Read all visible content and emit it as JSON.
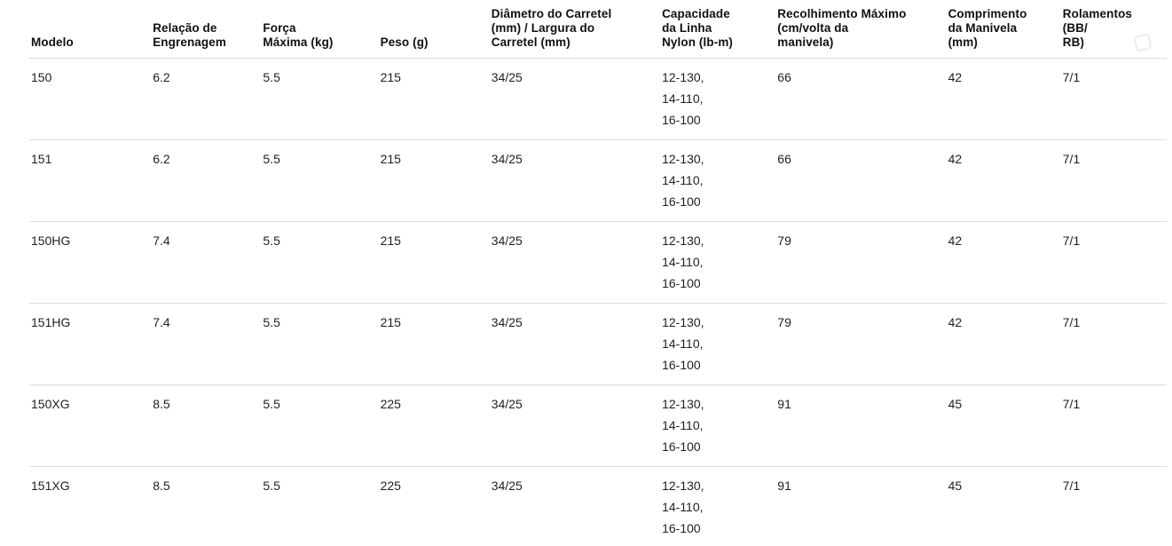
{
  "table": {
    "columns": [
      {
        "id": "modelo",
        "label": "Modelo"
      },
      {
        "id": "relacao",
        "label": "Relação de\nEngrenagem"
      },
      {
        "id": "forca",
        "label": "Força\nMáxima (kg)"
      },
      {
        "id": "peso",
        "label": "Peso (g)"
      },
      {
        "id": "diametro",
        "label": "Diâmetro do Carretel\n(mm) / Largura do\nCarretel (mm)"
      },
      {
        "id": "capacidade",
        "label": "Capacidade\nda Linha\nNylon (lb-m)"
      },
      {
        "id": "recolhimento",
        "label": "Recolhimento Máximo\n(cm/volta da\nmanivela)"
      },
      {
        "id": "comprimento",
        "label": "Comprimento\nda Manivela\n(mm)"
      },
      {
        "id": "rolamentos",
        "label": "Rolamentos (BB/\nRB)"
      }
    ],
    "rows": [
      {
        "cells": [
          "150",
          "6.2",
          "5.5",
          "215",
          "34/25",
          "12-130,\n14-110,\n16-100",
          "66",
          "42",
          "7/1"
        ]
      },
      {
        "cells": [
          "151",
          "6.2",
          "5.5",
          "215",
          "34/25",
          "12-130,\n14-110,\n16-100",
          "66",
          "42",
          "7/1"
        ]
      },
      {
        "cells": [
          "150HG",
          "7.4",
          "5.5",
          "215",
          "34/25",
          "12-130,\n14-110,\n16-100",
          "79",
          "42",
          "7/1"
        ]
      },
      {
        "cells": [
          "151HG",
          "7.4",
          "5.5",
          "215",
          "34/25",
          "12-130,\n14-110,\n16-100",
          "79",
          "42",
          "7/1"
        ]
      },
      {
        "cells": [
          "150XG",
          "8.5",
          "5.5",
          "225",
          "34/25",
          "12-130,\n14-110,\n16-100",
          "91",
          "45",
          "7/1"
        ]
      },
      {
        "cells": [
          "151XG",
          "8.5",
          "5.5",
          "225",
          "34/25",
          "12-130,\n14-110,\n16-100",
          "91",
          "45",
          "7/1"
        ]
      }
    ],
    "colors": {
      "divider": "#dcdcdc",
      "header_text": "#101010",
      "body_text": "#1f1f1f"
    }
  }
}
